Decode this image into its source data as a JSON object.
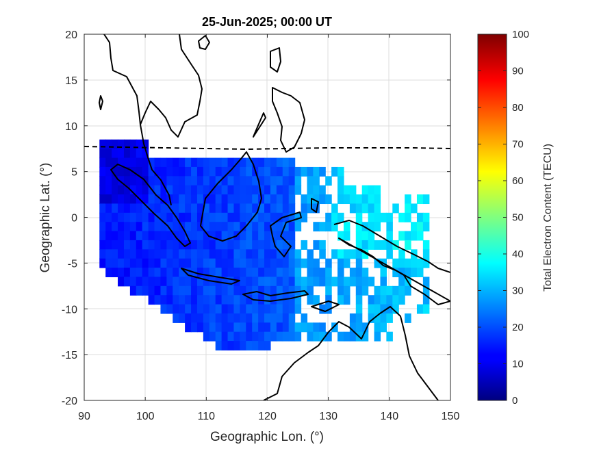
{
  "title": "25-Jun-2025; 00:00 UT",
  "x_axis": {
    "label": "Geographic Lon. (°)",
    "range": [
      90,
      150
    ],
    "ticks": [
      "90",
      "100",
      "110",
      "120",
      "130",
      "140",
      "150"
    ]
  },
  "y_axis": {
    "label": "Geographic Lat. (°)",
    "range": [
      -20,
      20
    ],
    "ticks": [
      "20",
      "15",
      "10",
      "5",
      "0",
      "-5",
      "-10",
      "-15",
      "-20"
    ]
  },
  "colorbar": {
    "label": "Total Electron Content (TECU)",
    "range": [
      0,
      100
    ],
    "ticks": [
      "100",
      "90",
      "80",
      "70",
      "60",
      "50",
      "40",
      "30",
      "20",
      "10",
      "0"
    ],
    "colormap": "jet"
  },
  "map": {
    "grid": true,
    "coastlines": true,
    "magnetic_equator": "dashed black line near 7.5° N",
    "tec_region": "Southeast Asia / Indonesia, TEC mostly 10–30 TECU, higher (~30–40) east of 125° E"
  }
}
